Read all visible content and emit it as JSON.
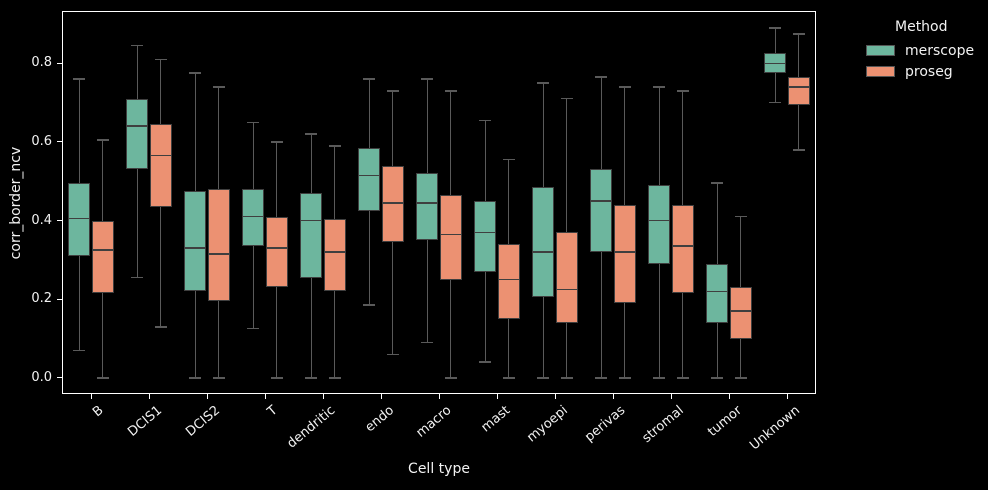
{
  "chart_data": {
    "type": "boxplot",
    "title": "",
    "xlabel": "Cell type",
    "ylabel": "corr_border_ncv",
    "categories": [
      "B",
      "DCIS1",
      "DCIS2",
      "T",
      "dendritic",
      "endo",
      "macro",
      "mast",
      "myoepi",
      "perivas",
      "stromal",
      "tumor",
      "Unknown"
    ],
    "yticks": [
      0.0,
      0.2,
      0.4,
      0.6,
      0.8
    ],
    "ylim": [
      -0.041,
      0.933
    ],
    "grid": false,
    "legend": {
      "title": "Method",
      "position": "outside-upper-right"
    },
    "series": [
      {
        "name": "merscope",
        "color": "#6db69e",
        "boxes": [
          {
            "lo": 0.07,
            "q1": 0.31,
            "med": 0.405,
            "q3": 0.495,
            "hi": 0.76
          },
          {
            "lo": 0.255,
            "q1": 0.53,
            "med": 0.64,
            "q3": 0.71,
            "hi": 0.845
          },
          {
            "lo": 0.0,
            "q1": 0.22,
            "med": 0.33,
            "q3": 0.475,
            "hi": 0.775
          },
          {
            "lo": 0.125,
            "q1": 0.335,
            "med": 0.41,
            "q3": 0.48,
            "hi": 0.65
          },
          {
            "lo": 0.0,
            "q1": 0.255,
            "med": 0.4,
            "q3": 0.47,
            "hi": 0.62
          },
          {
            "lo": 0.185,
            "q1": 0.425,
            "med": 0.515,
            "q3": 0.585,
            "hi": 0.76
          },
          {
            "lo": 0.09,
            "q1": 0.35,
            "med": 0.445,
            "q3": 0.52,
            "hi": 0.76
          },
          {
            "lo": 0.04,
            "q1": 0.27,
            "med": 0.37,
            "q3": 0.45,
            "hi": 0.655
          },
          {
            "lo": 0.0,
            "q1": 0.205,
            "med": 0.32,
            "q3": 0.485,
            "hi": 0.75
          },
          {
            "lo": 0.0,
            "q1": 0.32,
            "med": 0.45,
            "q3": 0.53,
            "hi": 0.765
          },
          {
            "lo": 0.0,
            "q1": 0.29,
            "med": 0.4,
            "q3": 0.49,
            "hi": 0.74
          },
          {
            "lo": 0.0,
            "q1": 0.14,
            "med": 0.22,
            "q3": 0.29,
            "hi": 0.495
          },
          {
            "lo": 0.7,
            "q1": 0.775,
            "med": 0.8,
            "q3": 0.825,
            "hi": 0.89
          }
        ]
      },
      {
        "name": "proseg",
        "color": "#ec9172",
        "boxes": [
          {
            "lo": 0.0,
            "q1": 0.215,
            "med": 0.325,
            "q3": 0.4,
            "hi": 0.605
          },
          {
            "lo": 0.13,
            "q1": 0.435,
            "med": 0.565,
            "q3": 0.645,
            "hi": 0.81
          },
          {
            "lo": 0.0,
            "q1": 0.195,
            "med": 0.315,
            "q3": 0.48,
            "hi": 0.74
          },
          {
            "lo": 0.0,
            "q1": 0.23,
            "med": 0.33,
            "q3": 0.41,
            "hi": 0.6
          },
          {
            "lo": 0.0,
            "q1": 0.22,
            "med": 0.32,
            "q3": 0.405,
            "hi": 0.59
          },
          {
            "lo": 0.06,
            "q1": 0.345,
            "med": 0.445,
            "q3": 0.54,
            "hi": 0.73
          },
          {
            "lo": 0.0,
            "q1": 0.25,
            "med": 0.365,
            "q3": 0.465,
            "hi": 0.73
          },
          {
            "lo": 0.0,
            "q1": 0.15,
            "med": 0.25,
            "q3": 0.34,
            "hi": 0.555
          },
          {
            "lo": 0.0,
            "q1": 0.14,
            "med": 0.225,
            "q3": 0.37,
            "hi": 0.71
          },
          {
            "lo": 0.0,
            "q1": 0.19,
            "med": 0.32,
            "q3": 0.44,
            "hi": 0.74
          },
          {
            "lo": 0.0,
            "q1": 0.215,
            "med": 0.335,
            "q3": 0.44,
            "hi": 0.73
          },
          {
            "lo": 0.0,
            "q1": 0.1,
            "med": 0.17,
            "q3": 0.23,
            "hi": 0.41
          },
          {
            "lo": 0.58,
            "q1": 0.695,
            "med": 0.74,
            "q3": 0.765,
            "hi": 0.875
          }
        ]
      }
    ],
    "colors": {
      "background": "#000000",
      "frame": "#ffffff",
      "text": "#f2f2f2",
      "box_edge": "#3f3f3f",
      "whisker": "#5a5a5a"
    }
  }
}
